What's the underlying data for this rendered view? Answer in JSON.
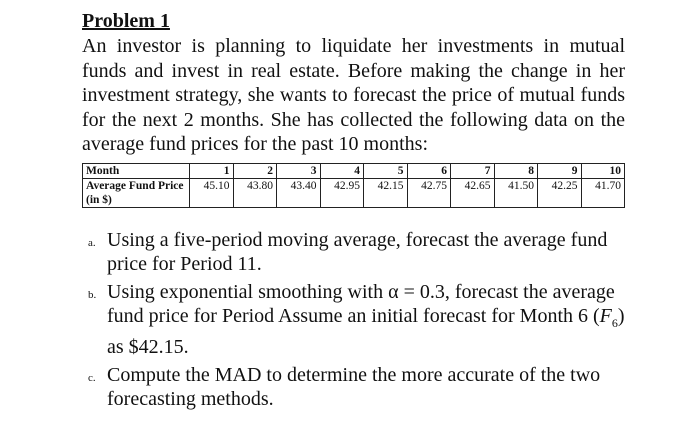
{
  "problem": {
    "title": "Problem 1",
    "intro": "An investor is planning to liquidate her investments in mutual funds and invest in real estate. Before making the change in her investment strategy, she wants to forecast the price of mutual funds for the next 2 months. She has collected the following data on the average fund prices for the past 10 months:",
    "table": {
      "header": [
        "Month",
        "1",
        "2",
        "3",
        "4",
        "5",
        "6",
        "7",
        "8",
        "9",
        "10"
      ],
      "row_label": "Average Fund Price (in $)",
      "values": [
        "45.10",
        "43.80",
        "43.40",
        "42.95",
        "42.15",
        "42.75",
        "42.65",
        "41.50",
        "42.25",
        "41.70"
      ]
    },
    "questions": [
      {
        "marker": "a.",
        "text": "Using a five-period moving average, forecast the average fund price for Period 11."
      },
      {
        "marker": "b.",
        "text_before": "Using exponential smoothing with α = 0.3, forecast the average fund price for Period Assume an initial forecast for Month 6 (",
        "symbol": "F",
        "subscript": "6",
        "text_after": ") as $42.15."
      },
      {
        "marker": "c.",
        "text": "Compute the MAD to determine the more accurate of the two forecasting methods."
      }
    ]
  }
}
